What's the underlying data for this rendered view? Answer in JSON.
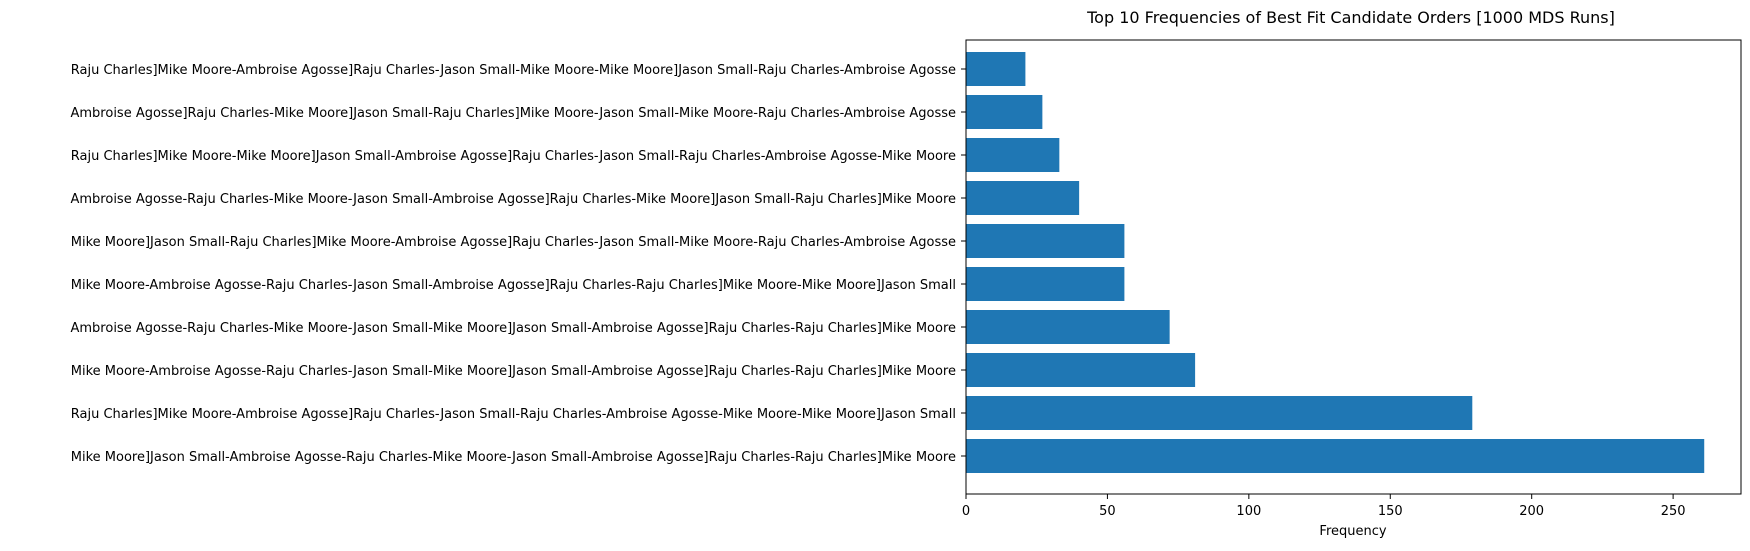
{
  "chart_data": {
    "type": "bar",
    "orientation": "horizontal",
    "title": "Top 10 Frequencies of Best Fit Candidate Orders [1000 MDS Runs]",
    "xlabel": "Frequency",
    "ylabel": "",
    "xlim": [
      0,
      274
    ],
    "xticks": [
      0,
      50,
      100,
      150,
      200,
      250
    ],
    "grid": false,
    "bar_color": "#1f77b4",
    "categories": [
      "Mike Moore]Jason Small-Ambroise Agosse-Raju Charles-Mike Moore-Jason Small-Ambroise Agosse]Raju Charles-Raju Charles]Mike Moore",
      "Raju Charles]Mike Moore-Ambroise Agosse]Raju Charles-Jason Small-Raju Charles-Ambroise Agosse-Mike Moore-Mike Moore]Jason Small",
      "Mike Moore-Ambroise Agosse-Raju Charles-Jason Small-Mike Moore]Jason Small-Ambroise Agosse]Raju Charles-Raju Charles]Mike Moore",
      "Ambroise Agosse-Raju Charles-Mike Moore-Jason Small-Mike Moore]Jason Small-Ambroise Agosse]Raju Charles-Raju Charles]Mike Moore",
      "Mike Moore-Ambroise Agosse-Raju Charles-Jason Small-Ambroise Agosse]Raju Charles-Raju Charles]Mike Moore-Mike Moore]Jason Small",
      "Mike Moore]Jason Small-Raju Charles]Mike Moore-Ambroise Agosse]Raju Charles-Jason Small-Mike Moore-Raju Charles-Ambroise Agosse",
      "Ambroise Agosse-Raju Charles-Mike Moore-Jason Small-Ambroise Agosse]Raju Charles-Mike Moore]Jason Small-Raju Charles]Mike Moore",
      "Raju Charles]Mike Moore-Mike Moore]Jason Small-Ambroise Agosse]Raju Charles-Jason Small-Raju Charles-Ambroise Agosse-Mike Moore",
      "Ambroise Agosse]Raju Charles-Mike Moore]Jason Small-Raju Charles]Mike Moore-Jason Small-Mike Moore-Raju Charles-Ambroise Agosse",
      "Raju Charles]Mike Moore-Ambroise Agosse]Raju Charles-Jason Small-Mike Moore-Mike Moore]Jason Small-Raju Charles-Ambroise Agosse"
    ],
    "values": [
      261,
      179,
      81,
      72,
      56,
      56,
      40,
      33,
      27,
      21
    ]
  }
}
